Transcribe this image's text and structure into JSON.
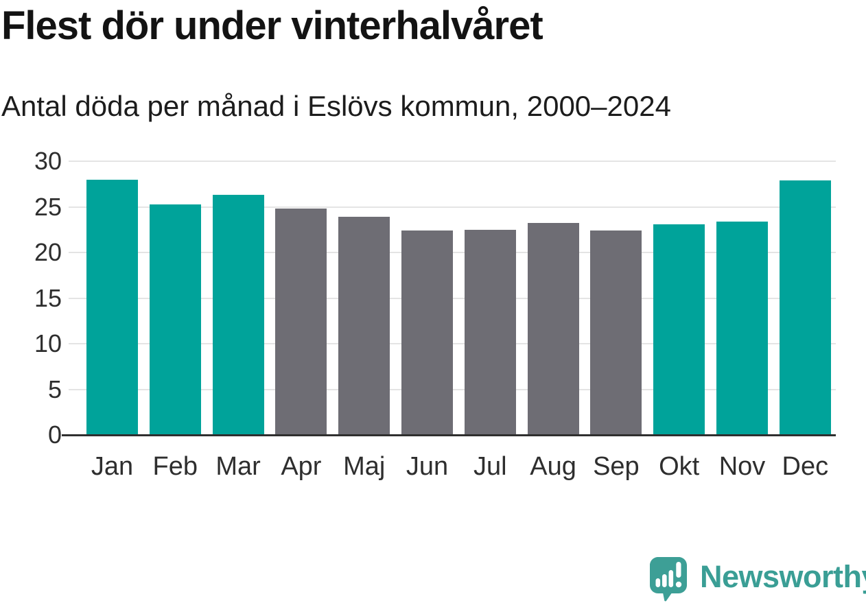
{
  "header": {
    "title": "Flest dör under vinterhalvåret",
    "subtitle": "Antal döda per månad i Eslövs kommun, 2000–2024"
  },
  "chart_data": {
    "type": "bar",
    "title": "Flest dör under vinterhalvåret",
    "subtitle": "Antal döda per månad i Eslövs kommun, 2000–2024",
    "categories": [
      "Jan",
      "Feb",
      "Mar",
      "Apr",
      "Maj",
      "Jun",
      "Jul",
      "Aug",
      "Sep",
      "Okt",
      "Nov",
      "Dec"
    ],
    "values": [
      28.0,
      25.3,
      26.3,
      24.8,
      23.9,
      22.4,
      22.5,
      23.2,
      22.4,
      23.1,
      23.4,
      27.9
    ],
    "bar_groups": [
      "winter",
      "winter",
      "winter",
      "summer",
      "summer",
      "summer",
      "summer",
      "summer",
      "summer",
      "winter",
      "winter",
      "winter"
    ],
    "group_colors": {
      "winter": "#00a39a",
      "summer": "#6e6d74"
    },
    "xlabel": "",
    "ylabel": "",
    "ylim": [
      0,
      30
    ],
    "y_ticks": [
      0,
      5,
      10,
      15,
      20,
      25,
      30
    ],
    "grid": true,
    "legend": "none"
  },
  "branding": {
    "name": "Newsworthy",
    "logo_icon": "newsworthy-speech-bubble-chart-icon",
    "logo_color": "#3d9f96",
    "wordmark_color": "#3a9e95"
  },
  "style_colors": {
    "background": "#ffffff",
    "title_text": "#131313",
    "subtitle_text": "#1c1c1c",
    "axis_text": "#2e2e2e",
    "gridline": "#e4e4e4",
    "axis_line": "#2f2f2f"
  }
}
